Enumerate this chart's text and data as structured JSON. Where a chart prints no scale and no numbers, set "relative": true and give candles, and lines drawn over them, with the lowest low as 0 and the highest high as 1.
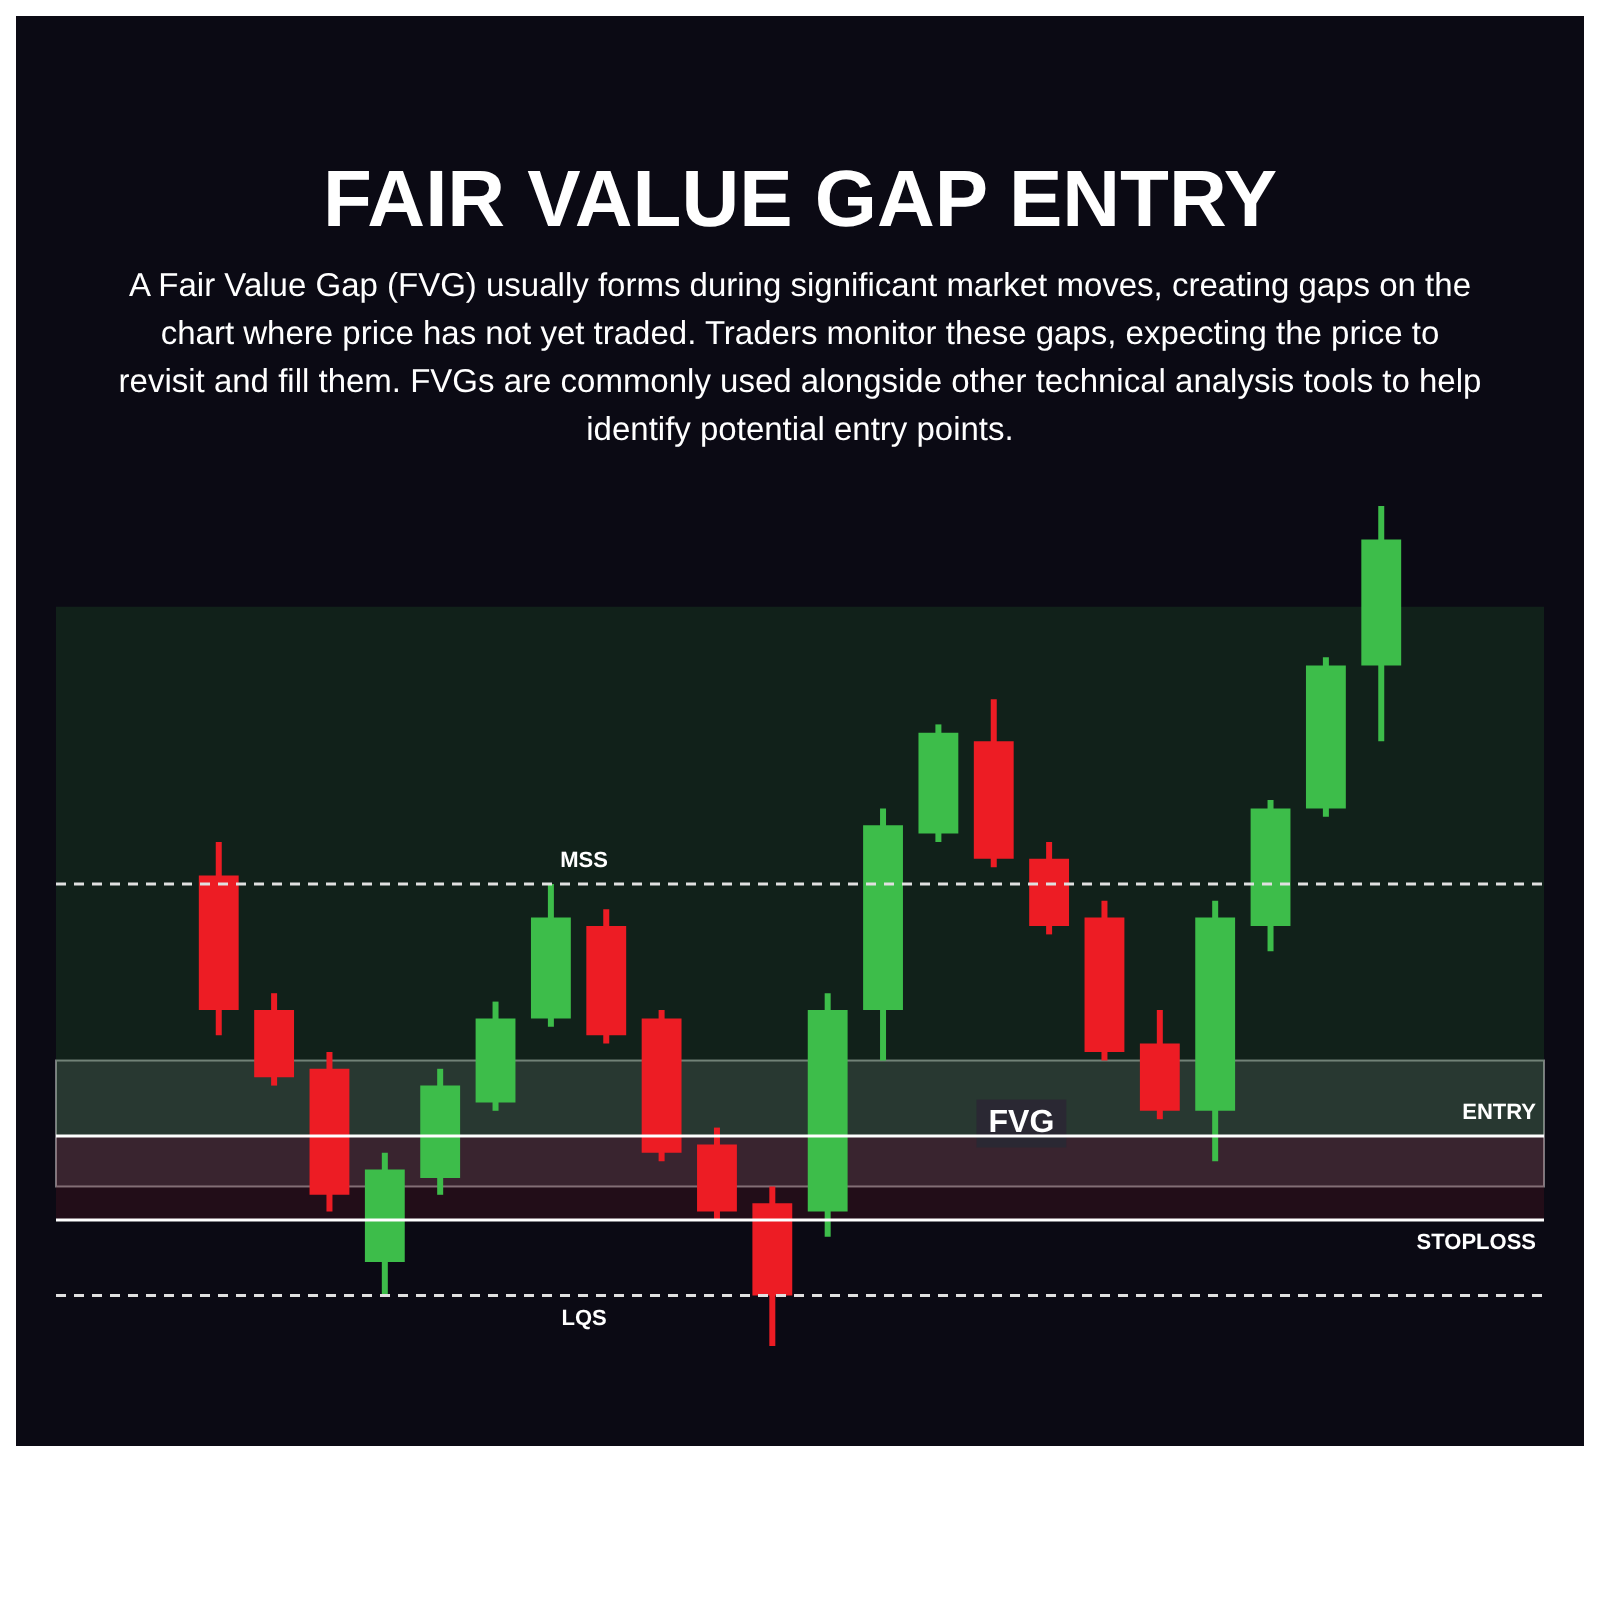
{
  "chart_data": {
    "type": "candlestick",
    "title": "FAIR VALUE GAP ENTRY",
    "subtitle": "A Fair Value Gap (FVG) usually forms during significant market moves, creating gaps on the chart where price has not yet traded. Traders monitor these gaps, expecting the price to revisit and fill them. FVGs are commonly used alongside other technical analysis tools to help identify potential entry points.",
    "relative": true,
    "categories": [
      null,
      null,
      null,
      null,
      null,
      null,
      null,
      null,
      null,
      null,
      null,
      null,
      null,
      null,
      null,
      null,
      null,
      null,
      null,
      null,
      null,
      null
    ],
    "ohlc": [
      [
        0.56,
        0.6,
        0.37,
        0.4
      ],
      [
        0.4,
        0.42,
        0.31,
        0.32
      ],
      [
        0.33,
        0.35,
        0.16,
        0.18
      ],
      [
        0.1,
        0.23,
        0.06,
        0.21
      ],
      [
        0.2,
        0.33,
        0.18,
        0.31
      ],
      [
        0.29,
        0.41,
        0.28,
        0.39
      ],
      [
        0.39,
        0.55,
        0.38,
        0.51
      ],
      [
        0.5,
        0.52,
        0.36,
        0.37
      ],
      [
        0.39,
        0.4,
        0.22,
        0.23
      ],
      [
        0.24,
        0.26,
        0.15,
        0.16
      ],
      [
        0.17,
        0.19,
        0,
        0.06
      ],
      [
        0.16,
        0.42,
        0.13,
        0.4
      ],
      [
        0.4,
        0.64,
        0.34,
        0.62
      ],
      [
        0.61,
        0.74,
        0.6,
        0.73
      ],
      [
        0.72,
        0.77,
        0.57,
        0.58
      ],
      [
        0.58,
        0.6,
        0.49,
        0.5
      ],
      [
        0.51,
        0.53,
        0.34,
        0.35
      ],
      [
        0.36,
        0.4,
        0.27,
        0.28
      ],
      [
        0.28,
        0.53,
        0.22,
        0.51
      ],
      [
        0.5,
        0.65,
        0.47,
        0.64
      ],
      [
        0.64,
        0.82,
        0.63,
        0.81
      ],
      [
        0.81,
        1,
        0.72,
        0.96
      ]
    ],
    "colors": [
      "#ed1c24",
      "#ed1c24",
      "#ed1c24",
      "#3dbd4a",
      "#3dbd4a",
      "#3dbd4a",
      "#3dbd4a",
      "#ed1c24",
      "#ed1c24",
      "#ed1c24",
      "#ed1c24",
      "#3dbd4a",
      "#3dbd4a",
      "#3dbd4a",
      "#ed1c24",
      "#ed1c24",
      "#ed1c24",
      "#ed1c24",
      "#3dbd4a",
      "#3dbd4a",
      "#3dbd4a",
      "#3dbd4a"
    ],
    "ref_lines": [
      {
        "axis": "y",
        "value": 0.55,
        "label": "MSS",
        "line_style": "dashed",
        "color": "#e0e0e0"
      },
      {
        "axis": "y",
        "value": 0.06,
        "label": "LQS",
        "line_style": "dashed",
        "color": "#e0e0e0"
      },
      {
        "axis": "y",
        "value": 0.25,
        "label": "ENTRY",
        "color": "#ffffff"
      },
      {
        "axis": "y",
        "value": 0.15,
        "label": "STOPLOSS",
        "color": "#ffffff"
      }
    ],
    "bands": [
      {
        "axis": "y",
        "from": 0.19,
        "to": 0.34,
        "label": "FVG",
        "color": "#ffffff"
      },
      {
        "axis": "y",
        "from": 0.25,
        "to": 0.88,
        "color": "#2e8b3a"
      },
      {
        "axis": "y",
        "from": 0.15,
        "to": 0.25,
        "color": "#8b1a2a"
      }
    ]
  }
}
